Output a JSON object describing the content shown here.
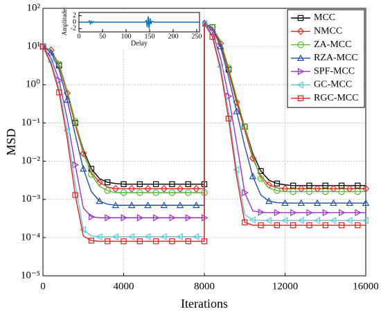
{
  "chart_data": [
    {
      "type": "line",
      "xlabel": "Iterations",
      "ylabel": "MSD",
      "x": [
        0,
        400,
        800,
        1200,
        1600,
        2000,
        2400,
        2800,
        3200,
        3600,
        4000,
        4400,
        4800,
        5200,
        5600,
        6000,
        6400,
        6800,
        7200,
        7600,
        8000,
        8000,
        8400,
        8800,
        9200,
        9600,
        10000,
        10400,
        10800,
        11200,
        11600,
        12000,
        12400,
        12800,
        13200,
        13600,
        14000,
        14400,
        14800,
        15200,
        15600,
        16000
      ],
      "xlim": [
        0,
        16000
      ],
      "xticks": [
        0,
        4000,
        8000,
        12000,
        16000
      ],
      "ylim": [
        1e-05,
        100
      ],
      "log_y": true,
      "grid": true,
      "legend": "upper right",
      "yticks": [
        {
          "value": 1e-05,
          "label": "10⁻⁵"
        },
        {
          "value": 0.0001,
          "label": "10⁻⁴"
        },
        {
          "value": 0.001,
          "label": "10⁻³"
        },
        {
          "value": 0.01,
          "label": "10⁻²"
        },
        {
          "value": 0.1,
          "label": "10⁻¹"
        },
        {
          "value": 1,
          "label": "10⁰"
        },
        {
          "value": 10,
          "label": "10¹"
        },
        {
          "value": 100,
          "label": "10²"
        }
      ],
      "series": [
        {
          "name": "MCC",
          "color": "#000000",
          "marker": "square",
          "values": [
            10,
            8,
            3.2,
            0.63,
            0.1,
            0.02,
            0.0063,
            0.0035,
            0.0028,
            0.0026,
            0.0025,
            0.0025,
            0.0025,
            0.0025,
            0.0025,
            0.0025,
            0.0025,
            0.0025,
            0.0025,
            0.0025,
            0.0025,
            40,
            32,
            13,
            2.5,
            0.4,
            0.08,
            0.016,
            0.0055,
            0.0032,
            0.0026,
            0.0024,
            0.0023,
            0.0023,
            0.0023,
            0.0023,
            0.0023,
            0.0023,
            0.0023,
            0.0023,
            0.0023,
            0.0023
          ]
        },
        {
          "name": "NMCC",
          "color": "#e8281e",
          "marker": "diamond",
          "values": [
            10,
            8,
            3.2,
            0.6,
            0.09,
            0.016,
            0.005,
            0.0028,
            0.0021,
            0.0019,
            0.0019,
            0.0019,
            0.0019,
            0.0019,
            0.0019,
            0.0019,
            0.0019,
            0.0019,
            0.0019,
            0.0019,
            0.0019,
            40,
            32,
            12,
            2.2,
            0.35,
            0.065,
            0.012,
            0.004,
            0.0024,
            0.002,
            0.0019,
            0.0019,
            0.0019,
            0.0019,
            0.0019,
            0.0019,
            0.0019,
            0.0019,
            0.0019,
            0.0019,
            0.0019
          ]
        },
        {
          "name": "ZA-MCC",
          "color": "#5cb431",
          "marker": "circle",
          "values": [
            10,
            8,
            3.5,
            0.7,
            0.11,
            0.018,
            0.0045,
            0.0022,
            0.0017,
            0.0015,
            0.0015,
            0.0015,
            0.0015,
            0.0015,
            0.0015,
            0.0015,
            0.0015,
            0.0015,
            0.0015,
            0.0015,
            0.0015,
            40,
            32,
            14,
            2.8,
            0.45,
            0.08,
            0.014,
            0.0035,
            0.002,
            0.0017,
            0.0016,
            0.0016,
            0.0016,
            0.0016,
            0.0016,
            0.0016,
            0.0016,
            0.0016,
            0.0016,
            0.0016,
            0.0016
          ]
        },
        {
          "name": "RZA-MCC",
          "color": "#1f4fa8",
          "marker": "triangle-up",
          "values": [
            10,
            7,
            2.5,
            0.4,
            0.05,
            0.0063,
            0.0016,
            0.0009,
            0.00075,
            0.0007,
            0.0007,
            0.0007,
            0.0007,
            0.0007,
            0.0007,
            0.0007,
            0.0007,
            0.0007,
            0.0007,
            0.0007,
            0.0007,
            40,
            30,
            10,
            1.6,
            0.2,
            0.025,
            0.004,
            0.0013,
            0.0009,
            0.00082,
            0.0008,
            0.0008,
            0.0008,
            0.0008,
            0.0008,
            0.0008,
            0.0008,
            0.0008,
            0.0008,
            0.0008,
            0.0008
          ]
        },
        {
          "name": "SPF-MCC",
          "color": "#9b30c8",
          "marker": "triangle-right",
          "values": [
            10,
            5,
            1.3,
            0.13,
            0.008,
            0.0006,
            0.00035,
            0.00033,
            0.00033,
            0.00033,
            0.00033,
            0.00033,
            0.00033,
            0.00033,
            0.00033,
            0.00033,
            0.00033,
            0.00033,
            0.00033,
            0.00033,
            0.00033,
            40,
            25,
            5,
            0.5,
            0.03,
            0.0015,
            0.0005,
            0.00046,
            0.00045,
            0.00045,
            0.00045,
            0.00045,
            0.00045,
            0.00045,
            0.00045,
            0.00045,
            0.00045,
            0.00045,
            0.00045,
            0.00045,
            0.00045
          ]
        },
        {
          "name": "GC-MCC",
          "color": "#5fc8d8",
          "marker": "triangle-left",
          "values": [
            10,
            4,
            0.8,
            0.063,
            0.0025,
            0.00016,
            0.00011,
            0.000105,
            0.000105,
            0.000105,
            0.000105,
            0.000105,
            0.000105,
            0.000105,
            0.000105,
            0.000105,
            0.000105,
            0.000105,
            0.000105,
            0.000105,
            0.000105,
            40,
            20,
            3,
            0.2,
            0.006,
            0.0004,
            0.00029,
            0.00028,
            0.00028,
            0.00028,
            0.00028,
            0.00028,
            0.00028,
            0.00028,
            0.00028,
            0.00028,
            0.00028,
            0.00028,
            0.00028,
            0.00028,
            0.00028
          ]
        },
        {
          "name": "RGC-MCC",
          "color": "#e02020",
          "marker": "square",
          "values": [
            10,
            3.5,
            0.63,
            0.04,
            0.0013,
            0.00011,
            8.3e-05,
            8e-05,
            8e-05,
            8e-05,
            8e-05,
            8e-05,
            8e-05,
            8e-05,
            8e-05,
            8e-05,
            8e-05,
            8e-05,
            8e-05,
            8e-05,
            8e-05,
            40,
            18,
            2.5,
            0.13,
            0.004,
            0.00025,
            0.00021,
            0.00021,
            0.00021,
            0.00021,
            0.00021,
            0.00021,
            0.00021,
            0.00021,
            0.00021,
            0.00021,
            0.00021,
            0.00021,
            0.00021,
            0.00021,
            0.00021
          ]
        }
      ]
    },
    {
      "type": "line",
      "xlabel": "Delay",
      "ylabel": "Amplitude",
      "x": [
        0,
        20,
        22,
        24,
        26,
        28,
        30,
        32,
        140,
        143,
        145,
        147,
        149,
        151,
        153,
        155,
        160,
        256
      ],
      "xlim": [
        0,
        256
      ],
      "xticks": [
        0,
        50,
        100,
        150,
        200,
        250
      ],
      "ylim": [
        -3,
        3
      ],
      "yticks": [
        -2,
        0,
        2
      ],
      "series": [
        {
          "color": "#0072bd",
          "values": [
            0,
            0,
            0.4,
            -0.5,
            0.3,
            -0.3,
            0.2,
            0,
            0,
            0.5,
            -1.5,
            1.8,
            -2,
            1.2,
            -0.6,
            0.3,
            0,
            0
          ]
        }
      ]
    }
  ]
}
